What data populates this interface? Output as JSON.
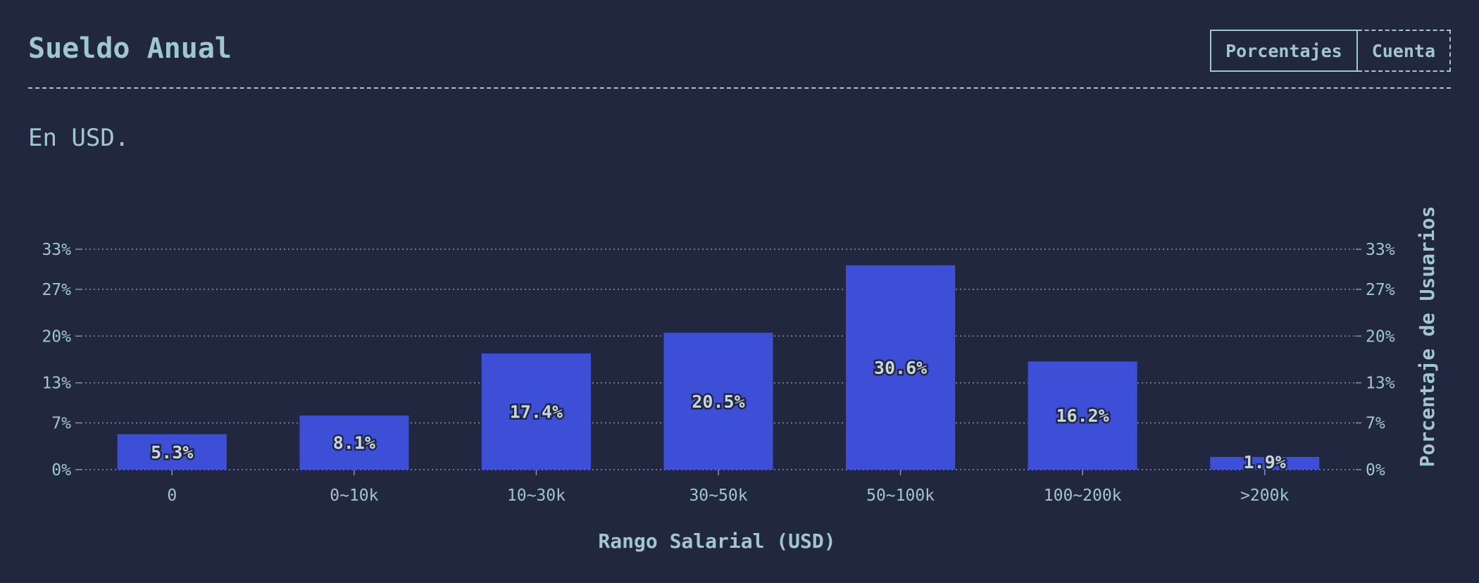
{
  "header": {
    "title": "Sueldo Anual",
    "toggle": {
      "percent_label": "Porcentajes",
      "count_label": "Cuenta"
    }
  },
  "subtitle": "En USD.",
  "colors": {
    "background": "#222740",
    "text": "#9fc7cf",
    "bar": "#3c4fd6",
    "grid": "#8a93a6"
  },
  "chart_data": {
    "type": "bar",
    "categories": [
      "0",
      "0~10k",
      "10~30k",
      "30~50k",
      "50~100k",
      "100~200k",
      ">200k"
    ],
    "values": [
      5.3,
      8.1,
      17.4,
      20.5,
      30.6,
      16.2,
      1.9
    ],
    "value_labels": [
      "5.3%",
      "8.1%",
      "17.4%",
      "20.5%",
      "30.6%",
      "16.2%",
      "1.9%"
    ],
    "xlabel": "Rango Salarial (USD)",
    "ylabel": "Porcentaje de Usuarios",
    "ylim": [
      0,
      33
    ],
    "yticks": [
      0,
      7,
      13,
      20,
      27,
      33
    ],
    "ytick_labels": [
      "0%",
      "7%",
      "13%",
      "20%",
      "27%",
      "33%"
    ],
    "grid": true,
    "right_axis": true
  }
}
